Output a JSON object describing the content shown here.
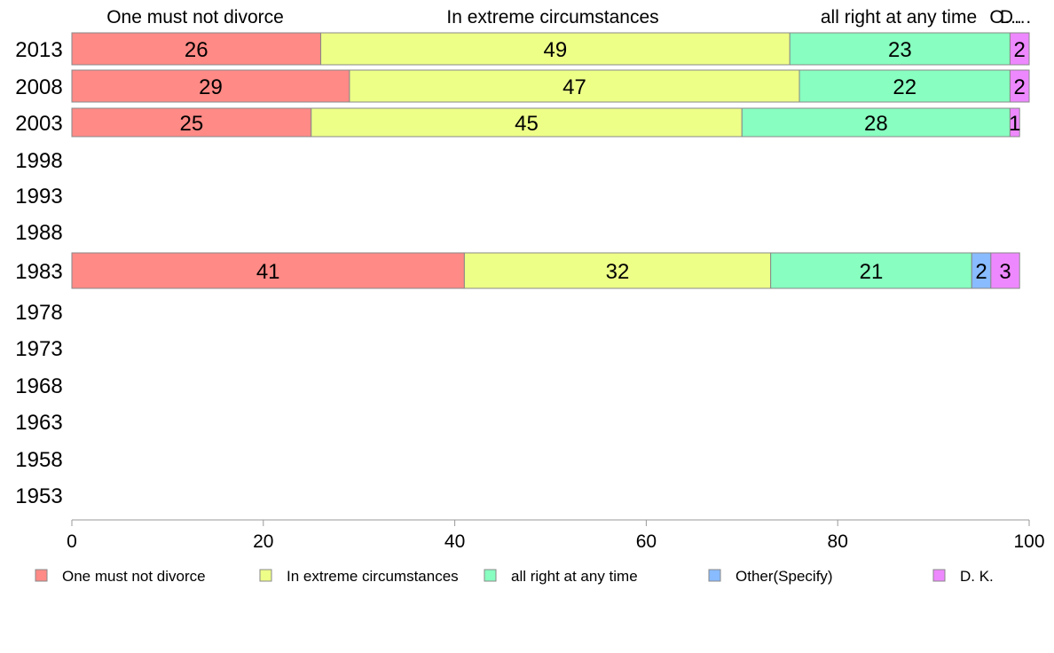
{
  "chart_data": {
    "type": "bar",
    "orientation": "horizontal",
    "stacked": true,
    "categories": [
      "2013",
      "2008",
      "2003",
      "1998",
      "1993",
      "1988",
      "1983",
      "1978",
      "1973",
      "1968",
      "1963",
      "1958",
      "1953"
    ],
    "series": [
      {
        "name": "One must not divorce",
        "color": "#ff8a86",
        "values": [
          26,
          29,
          25,
          null,
          null,
          null,
          41,
          null,
          null,
          null,
          null,
          null,
          null
        ]
      },
      {
        "name": "In extreme circumstances",
        "color": "#eeff88",
        "values": [
          49,
          47,
          45,
          null,
          null,
          null,
          32,
          null,
          null,
          null,
          null,
          null,
          null
        ]
      },
      {
        "name": "all right at any time",
        "color": "#88ffc0",
        "values": [
          23,
          22,
          28,
          null,
          null,
          null,
          21,
          null,
          null,
          null,
          null,
          null,
          null
        ]
      },
      {
        "name": "Other(Specify)",
        "color": "#88bbff",
        "values": [
          0,
          0,
          0,
          null,
          null,
          null,
          2,
          null,
          null,
          null,
          null,
          null,
          null
        ]
      },
      {
        "name": "D. K.",
        "color": "#ee88ff",
        "values": [
          2,
          2,
          1,
          null,
          null,
          null,
          3,
          null,
          null,
          null,
          null,
          null,
          null
        ]
      }
    ],
    "top_labels": [
      "One must not divorce",
      "In extreme circumstances",
      "all right at any time",
      "O…",
      "D…"
    ],
    "xlim": [
      0,
      100
    ],
    "xticks": [
      0,
      20,
      40,
      60,
      80,
      100
    ],
    "grid": false,
    "legend_position": "bottom"
  }
}
